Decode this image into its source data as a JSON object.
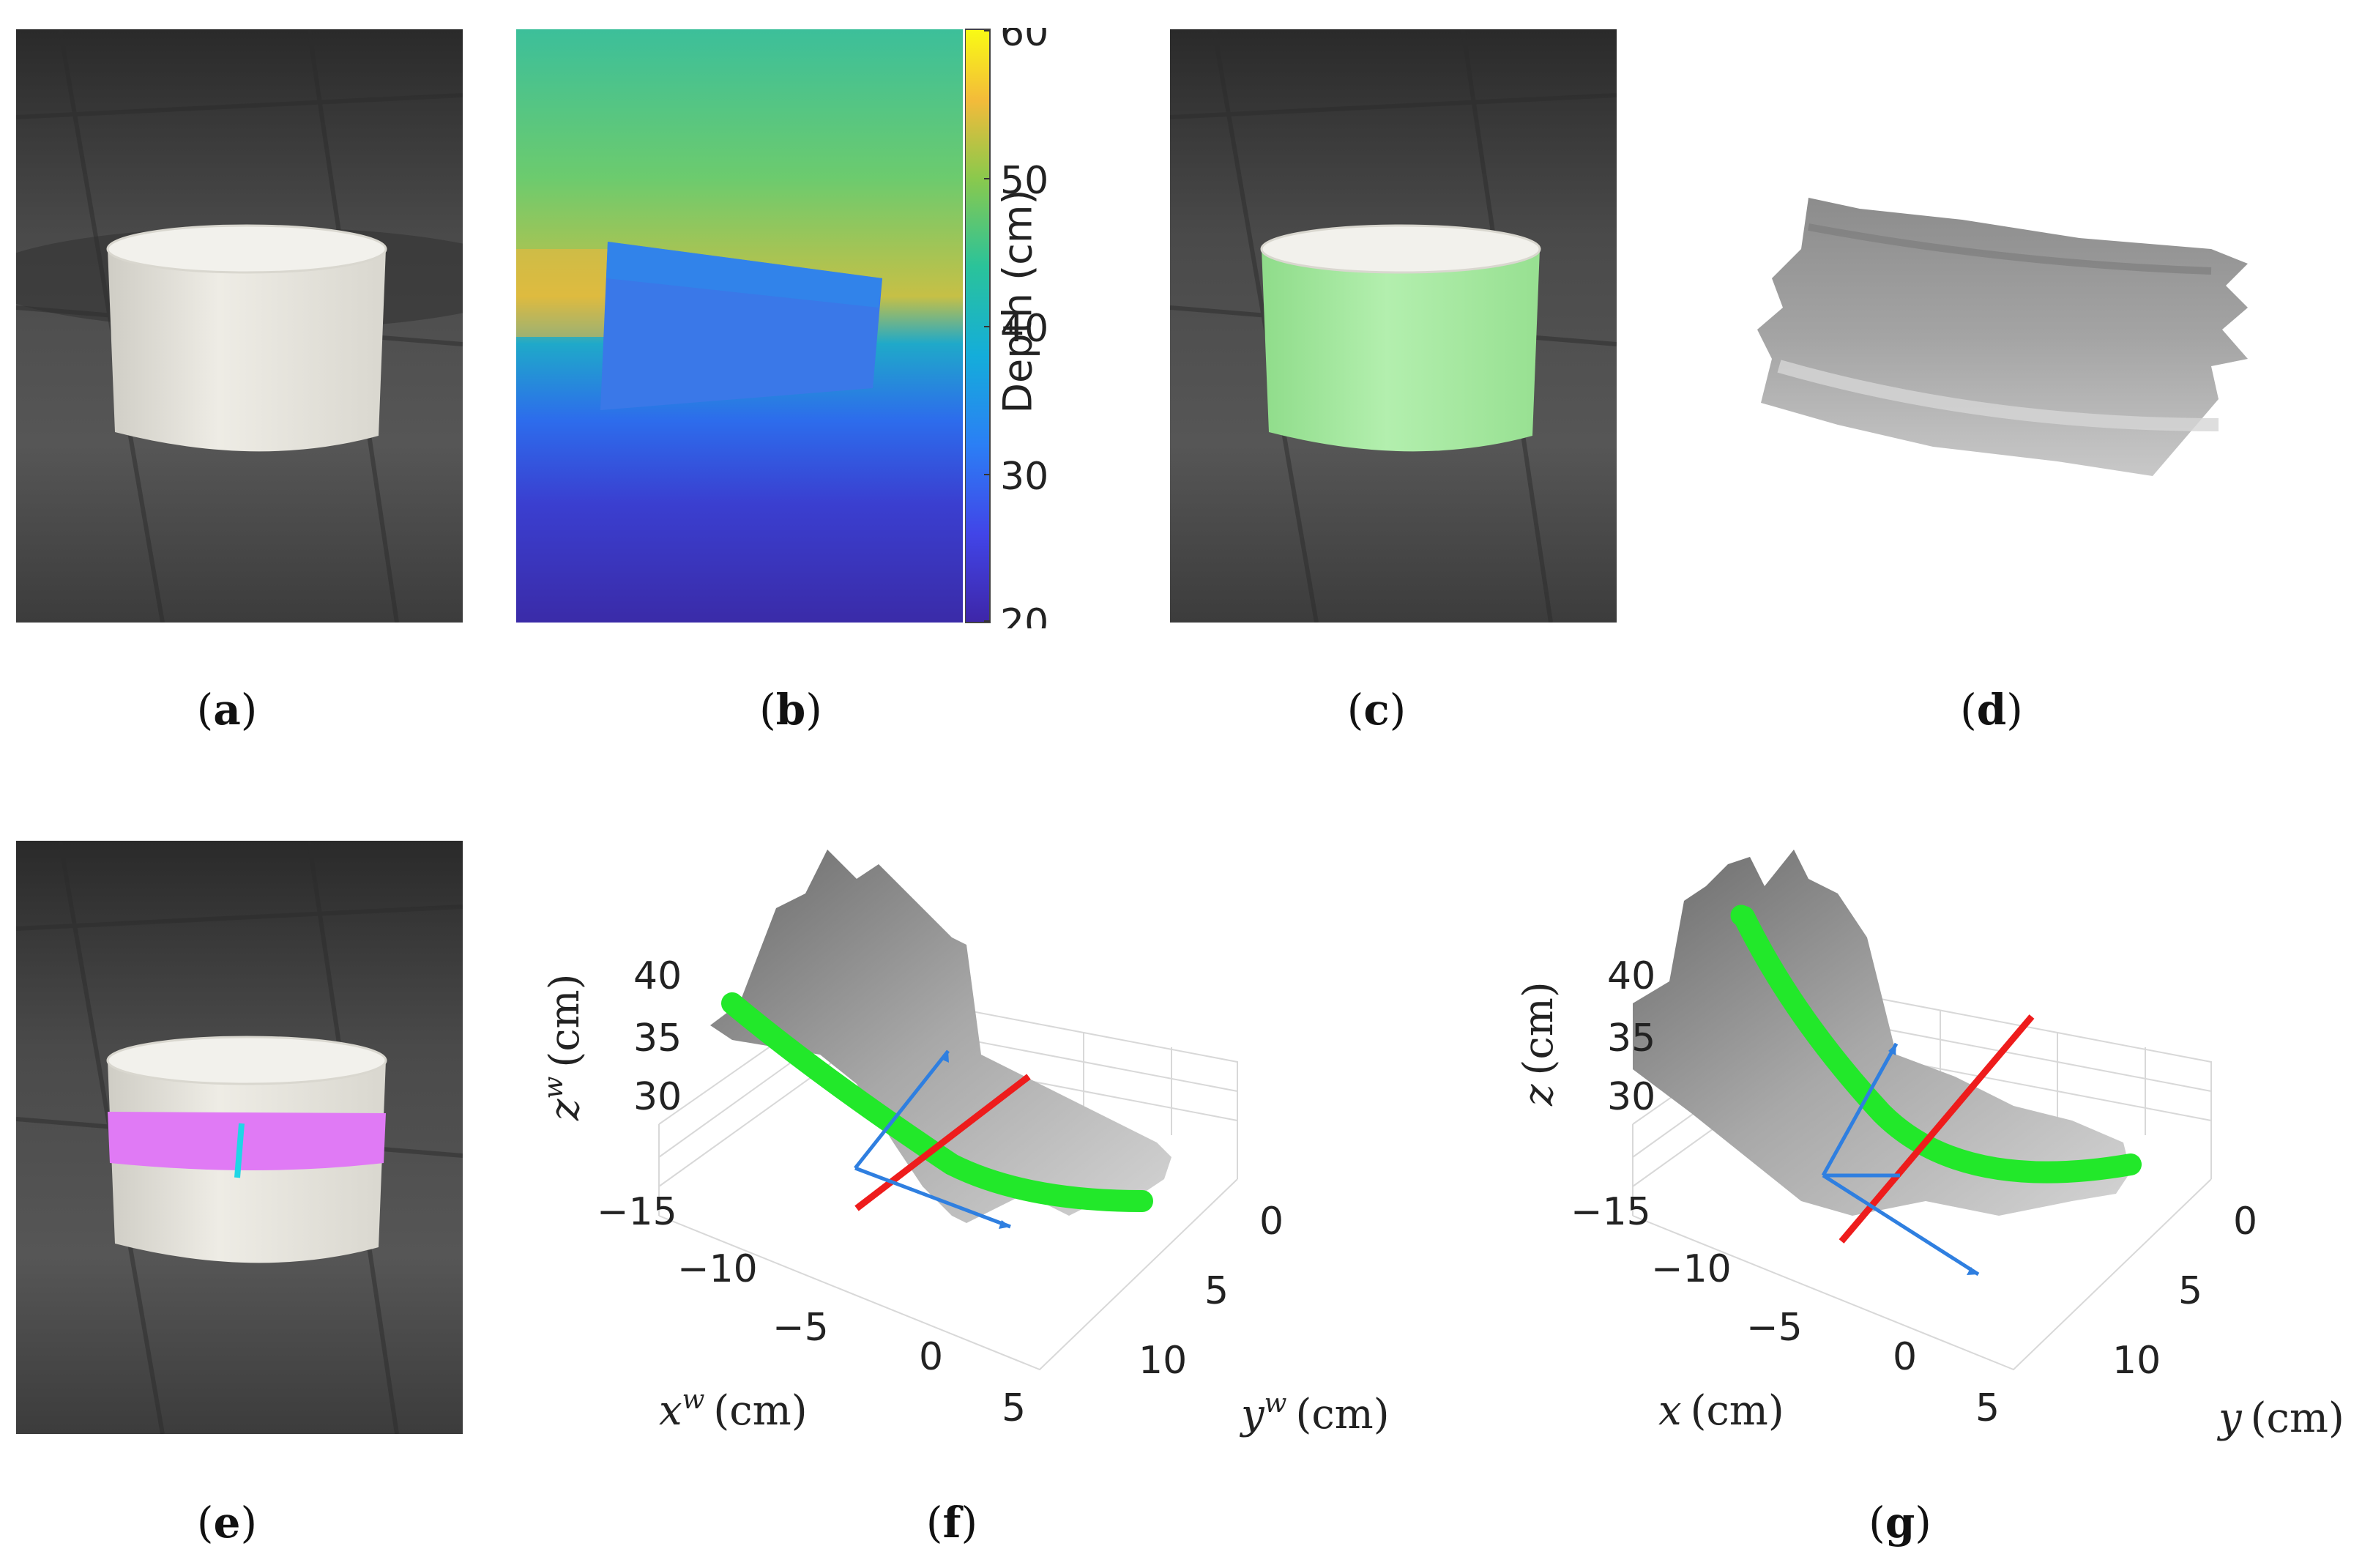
{
  "panels": {
    "a": {
      "label": "a"
    },
    "b": {
      "label": "b",
      "colorbar": {
        "label": "Depth (cm)",
        "ticks": [
          "60",
          "50",
          "40",
          "30",
          "20"
        ]
      }
    },
    "c": {
      "label": "c"
    },
    "d": {
      "label": "d"
    },
    "e": {
      "label": "e"
    },
    "f": {
      "label": "f",
      "z_axis": {
        "var": "z",
        "sup": "w",
        "unit": "(cm)",
        "ticks": [
          "40",
          "35",
          "30"
        ]
      },
      "x_axis": {
        "var": "x",
        "sup": "w",
        "unit": "(cm)",
        "ticks": [
          "−15",
          "−10",
          "−5",
          "0",
          "5"
        ]
      },
      "y_axis": {
        "var": "y",
        "sup": "w",
        "unit": "(cm)",
        "ticks": [
          "0",
          "5",
          "10"
        ]
      }
    },
    "g": {
      "label": "g",
      "z_axis": {
        "var": "z",
        "unit": "(cm)",
        "ticks": [
          "40",
          "35",
          "30"
        ]
      },
      "x_axis": {
        "var": "x",
        "unit": "(cm)",
        "ticks": [
          "−15",
          "−10",
          "−5",
          "0",
          "5"
        ]
      },
      "y_axis": {
        "var": "y",
        "unit": "(cm)",
        "ticks": [
          "0",
          "5",
          "10"
        ]
      }
    }
  },
  "colors": {
    "backdrop": "#3a3a3a",
    "cylinder": "#e6e4dc",
    "mask_green": "#9fe39a",
    "band_magenta": "#e07af5",
    "seam_cyan": "#1fd6e6",
    "trajectory_green": "#22e82a",
    "axis_red": "#ee1c1c",
    "axis_blue": "#2f7fe0",
    "surface_gray": "#9a9a9a"
  }
}
